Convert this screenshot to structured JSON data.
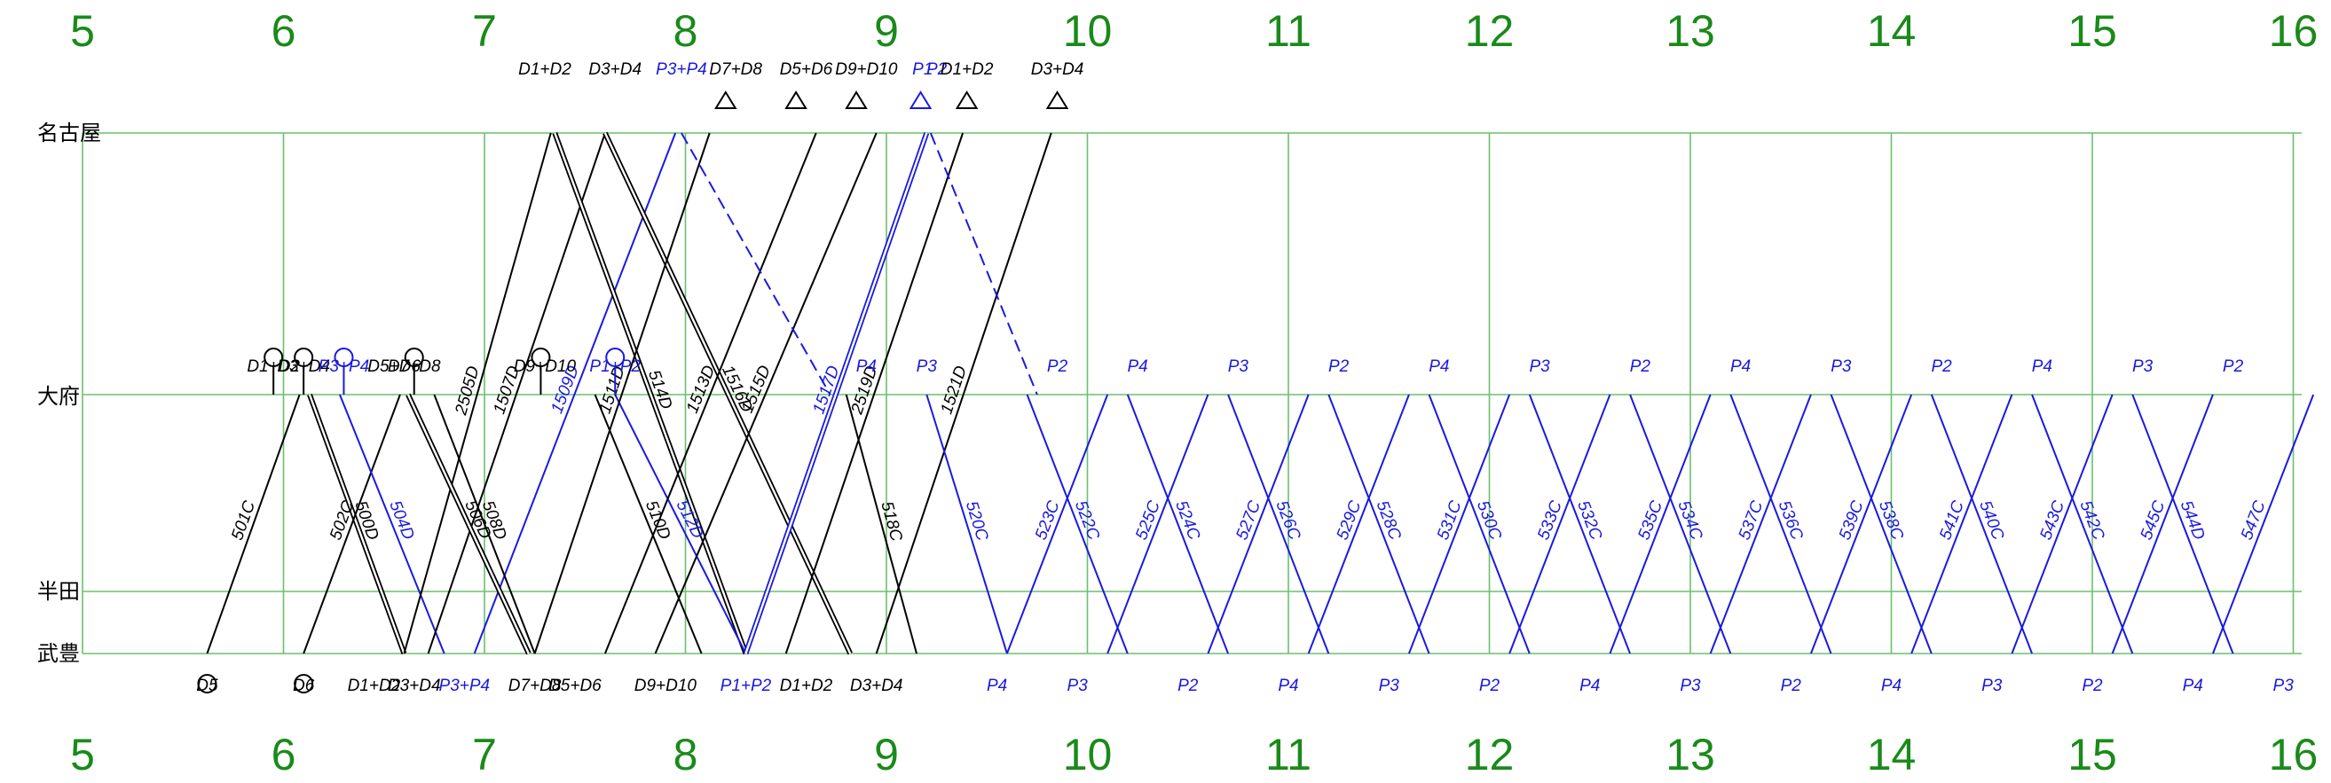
{
  "diagram": {
    "hours": [
      "5",
      "6",
      "7",
      "8",
      "9",
      "10",
      "11",
      "12",
      "13",
      "14",
      "15",
      "16"
    ],
    "stations": [
      {
        "id": "nagoya",
        "name": "名古屋"
      },
      {
        "id": "obu",
        "name": "大府"
      },
      {
        "id": "handa",
        "name": "半田"
      },
      {
        "id": "taketoyo",
        "name": "武豊"
      }
    ],
    "colors": {
      "grid": "#6cc06c",
      "hour": "#1a8a1a",
      "black": "#000000",
      "blue": "#1a1adf"
    },
    "trains": [
      {
        "label": "501C",
        "color": "black",
        "t0": 5.62,
        "s0": "taketoyo",
        "t1": 6.08,
        "s1": "obu"
      },
      {
        "label": "500D",
        "color": "black",
        "t0": 6.13,
        "s0": "obu",
        "t1": 6.6,
        "s1": "taketoyo",
        "stroke": "double"
      },
      {
        "label": "502C",
        "color": "black",
        "t0": 6.1,
        "s0": "taketoyo",
        "t1": 6.58,
        "s1": "obu"
      },
      {
        "label": "504D",
        "color": "blue",
        "t0": 6.28,
        "s0": "obu",
        "t1": 6.8,
        "s1": "taketoyo"
      },
      {
        "label": "2505D",
        "color": "black",
        "t0": 6.6,
        "s0": "taketoyo",
        "t1": 7.33,
        "s1": "nagoya"
      },
      {
        "label": "1507D",
        "color": "black",
        "t0": 6.72,
        "s0": "taketoyo",
        "t1": 7.6,
        "s1": "nagoya"
      },
      {
        "label": "1509D",
        "color": "blue",
        "t0": 6.95,
        "s0": "taketoyo",
        "t1": 7.95,
        "s1": "nagoya"
      },
      {
        "label": "514D",
        "color": "black",
        "t0": 7.35,
        "s0": "nagoya",
        "t1": 8.3,
        "s1": "taketoyo",
        "stroke": "double"
      },
      {
        "label": "1516D",
        "color": "black",
        "t0": 7.6,
        "s0": "nagoya",
        "t1": 8.82,
        "s1": "taketoyo",
        "stroke": "double"
      },
      {
        "label": "506D",
        "color": "black",
        "t0": 6.62,
        "s0": "obu",
        "t1": 7.22,
        "s1": "taketoyo",
        "stroke": "double"
      },
      {
        "label": "508D",
        "color": "black",
        "t0": 6.75,
        "s0": "obu",
        "t1": 7.25,
        "s1": "taketoyo"
      },
      {
        "label": "510D",
        "color": "black",
        "t0": 7.55,
        "s0": "obu",
        "t1": 8.08,
        "s1": "taketoyo"
      },
      {
        "label": "512D",
        "color": "blue",
        "t0": 7.65,
        "s0": "obu",
        "t1": 8.3,
        "s1": "taketoyo"
      },
      {
        "label": "1511D",
        "color": "black",
        "t0": 7.25,
        "s0": "taketoyo",
        "t1": 8.12,
        "s1": "nagoya"
      },
      {
        "label": "1513D",
        "color": "black",
        "t0": 7.6,
        "s0": "taketoyo",
        "t1": 8.65,
        "s1": "nagoya"
      },
      {
        "label": "1515D",
        "color": "black",
        "t0": 7.85,
        "s0": "taketoyo",
        "t1": 8.95,
        "s1": "nagoya"
      },
      {
        "label": "1517D",
        "color": "blue",
        "t0": 8.3,
        "s0": "taketoyo",
        "t1": 9.2,
        "s1": "nagoya",
        "stroke": "double"
      },
      {
        "label": "2519D",
        "color": "black",
        "t0": 8.5,
        "s0": "taketoyo",
        "t1": 9.38,
        "s1": "nagoya"
      },
      {
        "label": "1521D",
        "color": "black",
        "t0": 8.95,
        "s0": "taketoyo",
        "t1": 9.82,
        "s1": "nagoya"
      },
      {
        "label": "518C",
        "color": "black",
        "t0": 8.8,
        "s0": "obu",
        "t1": 9.15,
        "s1": "taketoyo"
      },
      {
        "label": "520C",
        "color": "blue",
        "t0": 9.2,
        "s0": "obu",
        "t1": 9.6,
        "s1": "taketoyo"
      },
      {
        "label": "523C",
        "color": "blue",
        "t0": 9.6,
        "s0": "taketoyo",
        "t1": 10.1,
        "s1": "obu"
      },
      {
        "label": "522C",
        "color": "blue",
        "t0": 9.7,
        "s0": "obu",
        "t1": 10.2,
        "s1": "taketoyo"
      },
      {
        "label": "525C",
        "color": "blue",
        "t0": 10.1,
        "s0": "taketoyo",
        "t1": 10.6,
        "s1": "obu"
      },
      {
        "label": "524C",
        "color": "blue",
        "t0": 10.2,
        "s0": "obu",
        "t1": 10.7,
        "s1": "taketoyo"
      },
      {
        "label": "527C",
        "color": "blue",
        "t0": 10.6,
        "s0": "taketoyo",
        "t1": 11.1,
        "s1": "obu"
      },
      {
        "label": "526C",
        "color": "blue",
        "t0": 10.7,
        "s0": "obu",
        "t1": 11.2,
        "s1": "taketoyo"
      },
      {
        "label": "529C",
        "color": "blue",
        "t0": 11.1,
        "s0": "taketoyo",
        "t1": 11.6,
        "s1": "obu"
      },
      {
        "label": "528C",
        "color": "blue",
        "t0": 11.2,
        "s0": "obu",
        "t1": 11.7,
        "s1": "taketoyo"
      },
      {
        "label": "531C",
        "color": "blue",
        "t0": 11.6,
        "s0": "taketoyo",
        "t1": 12.1,
        "s1": "obu"
      },
      {
        "label": "530C",
        "color": "blue",
        "t0": 11.7,
        "s0": "obu",
        "t1": 12.2,
        "s1": "taketoyo"
      },
      {
        "label": "533C",
        "color": "blue",
        "t0": 12.1,
        "s0": "taketoyo",
        "t1": 12.6,
        "s1": "obu"
      },
      {
        "label": "532C",
        "color": "blue",
        "t0": 12.2,
        "s0": "obu",
        "t1": 12.7,
        "s1": "taketoyo"
      },
      {
        "label": "535C",
        "color": "blue",
        "t0": 12.6,
        "s0": "taketoyo",
        "t1": 13.1,
        "s1": "obu"
      },
      {
        "label": "534C",
        "color": "blue",
        "t0": 12.7,
        "s0": "obu",
        "t1": 13.2,
        "s1": "taketoyo"
      },
      {
        "label": "537C",
        "color": "blue",
        "t0": 13.1,
        "s0": "taketoyo",
        "t1": 13.6,
        "s1": "obu"
      },
      {
        "label": "536C",
        "color": "blue",
        "t0": 13.2,
        "s0": "obu",
        "t1": 13.7,
        "s1": "taketoyo"
      },
      {
        "label": "539C",
        "color": "blue",
        "t0": 13.6,
        "s0": "taketoyo",
        "t1": 14.1,
        "s1": "obu"
      },
      {
        "label": "538C",
        "color": "blue",
        "t0": 13.7,
        "s0": "obu",
        "t1": 14.2,
        "s1": "taketoyo"
      },
      {
        "label": "541C",
        "color": "blue",
        "t0": 14.1,
        "s0": "taketoyo",
        "t1": 14.6,
        "s1": "obu"
      },
      {
        "label": "540C",
        "color": "blue",
        "t0": 14.2,
        "s0": "obu",
        "t1": 14.7,
        "s1": "taketoyo"
      },
      {
        "label": "543C",
        "color": "blue",
        "t0": 14.6,
        "s0": "taketoyo",
        "t1": 15.1,
        "s1": "obu"
      },
      {
        "label": "542C",
        "color": "blue",
        "t0": 14.7,
        "s0": "obu",
        "t1": 15.2,
        "s1": "taketoyo"
      },
      {
        "label": "545C",
        "color": "blue",
        "t0": 15.1,
        "s0": "taketoyo",
        "t1": 15.6,
        "s1": "obu"
      },
      {
        "label": "544D",
        "color": "blue",
        "t0": 15.2,
        "s0": "obu",
        "t1": 15.7,
        "s1": "taketoyo"
      },
      {
        "label": "547C",
        "color": "blue",
        "t0": 15.6,
        "s0": "taketoyo",
        "t1": 16.1,
        "s1": "obu"
      }
    ],
    "deadheads": [
      {
        "color": "blue",
        "t0": 7.98,
        "s0": "nagoya",
        "t1": 8.72,
        "s1": "obu"
      },
      {
        "color": "blue",
        "t0": 9.22,
        "s0": "nagoya",
        "t1": 9.75,
        "s1": "obu"
      }
    ],
    "stock_top": [
      {
        "label": "D1+D2",
        "t": 7.3,
        "s": "nagoya"
      },
      {
        "label": "D3+D4",
        "t": 7.65,
        "s": "nagoya"
      },
      {
        "label": "P3+P4",
        "t": 7.98,
        "s": "nagoya",
        "color": "blue"
      },
      {
        "label": "D7+D8",
        "t": 8.25,
        "s": "nagoya"
      },
      {
        "label": "D5+D6",
        "t": 8.6,
        "s": "nagoya"
      },
      {
        "label": "D9+D10",
        "t": 8.9,
        "s": "nagoya"
      },
      {
        "label": "P1",
        "t": 9.18,
        "s": "nagoya",
        "color": "blue"
      },
      {
        "label": "P2",
        "t": 9.25,
        "s": "nagoya",
        "color": "blue"
      },
      {
        "label": "D1+D2",
        "t": 9.4,
        "s": "nagoya"
      },
      {
        "label": "D3+D4",
        "t": 9.85,
        "s": "nagoya"
      }
    ],
    "stock_mid": [
      {
        "label": "D1+D2",
        "t": 5.95,
        "s": "obu"
      },
      {
        "label": "D3+D4",
        "t": 6.1,
        "s": "obu"
      },
      {
        "label": "P3+P4",
        "t": 6.3,
        "s": "obu",
        "color": "blue"
      },
      {
        "label": "D5+D6",
        "t": 6.55,
        "s": "obu"
      },
      {
        "label": "D7+D8",
        "t": 6.65,
        "s": "obu"
      },
      {
        "label": "D9+D10",
        "t": 7.3,
        "s": "obu"
      },
      {
        "label": "P1+P2",
        "t": 7.65,
        "s": "obu",
        "color": "blue"
      },
      {
        "label": "P3",
        "t": 9.2,
        "s": "obu",
        "color": "blue"
      },
      {
        "label": "P4",
        "t": 8.9,
        "s": "obu",
        "color": "blue"
      },
      {
        "label": "P2",
        "t": 9.85,
        "s": "obu",
        "color": "blue"
      },
      {
        "label": "P4",
        "t": 10.25,
        "s": "obu",
        "color": "blue"
      },
      {
        "label": "P3",
        "t": 10.75,
        "s": "obu",
        "color": "blue"
      },
      {
        "label": "P2",
        "t": 11.25,
        "s": "obu",
        "color": "blue"
      },
      {
        "label": "P4",
        "t": 11.75,
        "s": "obu",
        "color": "blue"
      },
      {
        "label": "P3",
        "t": 12.25,
        "s": "obu",
        "color": "blue"
      },
      {
        "label": "P2",
        "t": 12.75,
        "s": "obu",
        "color": "blue"
      },
      {
        "label": "P4",
        "t": 13.25,
        "s": "obu",
        "color": "blue"
      },
      {
        "label": "P3",
        "t": 13.75,
        "s": "obu",
        "color": "blue"
      },
      {
        "label": "P2",
        "t": 14.25,
        "s": "obu",
        "color": "blue"
      },
      {
        "label": "P4",
        "t": 14.75,
        "s": "obu",
        "color": "blue"
      },
      {
        "label": "P3",
        "t": 15.25,
        "s": "obu",
        "color": "blue"
      },
      {
        "label": "P2",
        "t": 15.7,
        "s": "obu",
        "color": "blue"
      }
    ],
    "stock_bottom": [
      {
        "label": "D5",
        "t": 5.62,
        "s": "taketoyo"
      },
      {
        "label": "D6",
        "t": 6.1,
        "s": "taketoyo"
      },
      {
        "label": "D1+D2",
        "t": 6.45,
        "s": "taketoyo"
      },
      {
        "label": "D3+D4",
        "t": 6.65,
        "s": "taketoyo"
      },
      {
        "label": "P3+P4",
        "t": 6.9,
        "s": "taketoyo",
        "color": "blue"
      },
      {
        "label": "D7+D8",
        "t": 7.25,
        "s": "taketoyo"
      },
      {
        "label": "D5+D6",
        "t": 7.45,
        "s": "taketoyo"
      },
      {
        "label": "D9+D10",
        "t": 7.9,
        "s": "taketoyo"
      },
      {
        "label": "P1+P2",
        "t": 8.3,
        "s": "taketoyo",
        "color": "blue"
      },
      {
        "label": "D1+D2",
        "t": 8.6,
        "s": "taketoyo"
      },
      {
        "label": "D3+D4",
        "t": 8.95,
        "s": "taketoyo"
      },
      {
        "label": "P4",
        "t": 9.55,
        "s": "taketoyo",
        "color": "blue"
      },
      {
        "label": "P3",
        "t": 9.95,
        "s": "taketoyo",
        "color": "blue"
      },
      {
        "label": "P2",
        "t": 10.5,
        "s": "taketoyo",
        "color": "blue"
      },
      {
        "label": "P4",
        "t": 11.0,
        "s": "taketoyo",
        "color": "blue"
      },
      {
        "label": "P3",
        "t": 11.5,
        "s": "taketoyo",
        "color": "blue"
      },
      {
        "label": "P2",
        "t": 12.0,
        "s": "taketoyo",
        "color": "blue"
      },
      {
        "label": "P4",
        "t": 12.5,
        "s": "taketoyo",
        "color": "blue"
      },
      {
        "label": "P3",
        "t": 13.0,
        "s": "taketoyo",
        "color": "blue"
      },
      {
        "label": "P2",
        "t": 13.5,
        "s": "taketoyo",
        "color": "blue"
      },
      {
        "label": "P4",
        "t": 14.0,
        "s": "taketoyo",
        "color": "blue"
      },
      {
        "label": "P3",
        "t": 14.5,
        "s": "taketoyo",
        "color": "blue"
      },
      {
        "label": "P2",
        "t": 15.0,
        "s": "taketoyo",
        "color": "blue"
      },
      {
        "label": "P4",
        "t": 15.5,
        "s": "taketoyo",
        "color": "blue"
      },
      {
        "label": "P3",
        "t": 15.95,
        "s": "taketoyo",
        "color": "blue"
      }
    ],
    "triangles": [
      {
        "t": 8.2,
        "color": "black"
      },
      {
        "t": 8.55,
        "color": "black"
      },
      {
        "t": 8.85,
        "color": "black"
      },
      {
        "t": 9.17,
        "color": "blue"
      },
      {
        "t": 9.4,
        "color": "black"
      },
      {
        "t": 9.85,
        "color": "black"
      }
    ],
    "circles": [
      {
        "t": 5.95,
        "s": "obu",
        "dir": "up",
        "color": "black"
      },
      {
        "t": 6.1,
        "s": "obu",
        "dir": "up",
        "color": "black"
      },
      {
        "t": 6.3,
        "s": "obu",
        "dir": "up",
        "color": "blue"
      },
      {
        "t": 6.65,
        "s": "obu",
        "dir": "up",
        "color": "black"
      },
      {
        "t": 7.28,
        "s": "obu",
        "dir": "up",
        "color": "black"
      },
      {
        "t": 7.65,
        "s": "obu",
        "dir": "up",
        "color": "blue"
      },
      {
        "t": 5.62,
        "s": "taketoyo",
        "dir": "down",
        "color": "black"
      },
      {
        "t": 6.1,
        "s": "taketoyo",
        "dir": "down",
        "color": "black"
      }
    ]
  }
}
